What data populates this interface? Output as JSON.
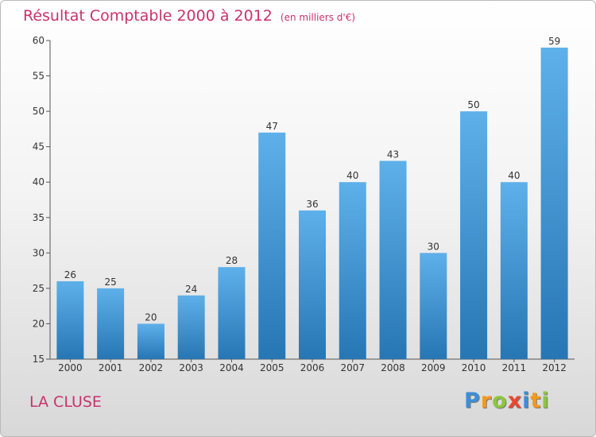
{
  "header": {
    "title": "Résultat Comptable 2000 à 2012",
    "subtitle": "(en milliers d'€)"
  },
  "footer": {
    "place": "LA CLUSE",
    "logo_letters": [
      {
        "ch": "P",
        "color": "#3a8fd8"
      },
      {
        "ch": "r",
        "color": "#f39a1d"
      },
      {
        "ch": "o",
        "color": "#8cc63f"
      },
      {
        "ch": "x",
        "color": "#e9472f"
      },
      {
        "ch": "i",
        "color": "#3a8fd8"
      },
      {
        "ch": "t",
        "color": "#f39a1d"
      },
      {
        "ch": "i",
        "color": "#8cc63f"
      }
    ]
  },
  "colors": {
    "bar_light": "#5eb0ea",
    "bar_dark": "#2776b4",
    "title": "#c8326e"
  },
  "chart_data": {
    "type": "bar",
    "categories": [
      "2000",
      "2001",
      "2002",
      "2003",
      "2004",
      "2005",
      "2006",
      "2007",
      "2008",
      "2009",
      "2010",
      "2011",
      "2012"
    ],
    "values": [
      26,
      25,
      20,
      24,
      28,
      47,
      36,
      40,
      43,
      30,
      50,
      40,
      59
    ],
    "ylim": [
      15,
      60
    ],
    "yticks": [
      15,
      20,
      25,
      30,
      35,
      40,
      45,
      50,
      55,
      60
    ],
    "grid": false,
    "data_labels": true
  }
}
